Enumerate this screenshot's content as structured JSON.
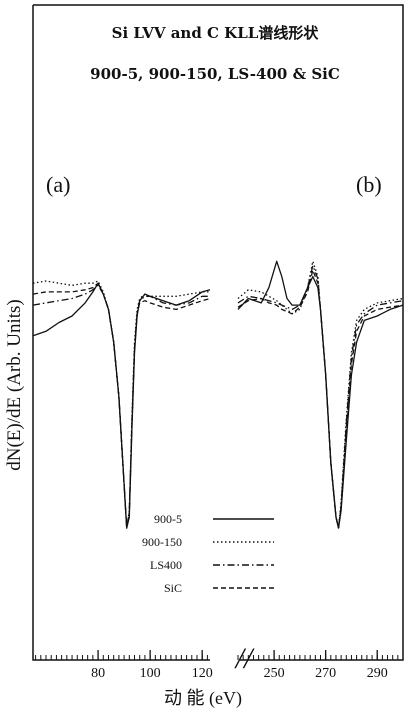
{
  "chart_data": {
    "type": "line",
    "title": "Si LVV and C KLL谱线形状",
    "subtitle": "900-5, 900-150, LS-400 & SiC",
    "xlabel": "动 能 (eV)",
    "ylabel": "dN(E)/dE (Arb. Units)",
    "axis_break": "//",
    "grid": false,
    "legend_placement": "bottom-center",
    "panels": [
      {
        "label": "(a)",
        "xlim": [
          55,
          123
        ],
        "ticks": [
          "80",
          "100",
          "120"
        ],
        "tick_values": [
          80,
          100,
          120
        ],
        "ylim": [
          -1.0,
          0.4
        ],
        "series": [
          {
            "name": "900-5",
            "style": "solid",
            "x": [
              55,
              60,
              65,
              70,
              75,
              78,
              80,
              82,
              84,
              86,
              88,
              90,
              91,
              92,
              93,
              94,
              95,
              96,
              98,
              100,
              105,
              110,
              115,
              120,
              123
            ],
            "y": [
              -0.12,
              -0.1,
              -0.06,
              -0.03,
              0.03,
              0.08,
              0.12,
              0.07,
              0.0,
              -0.15,
              -0.4,
              -0.8,
              -1.0,
              -0.95,
              -0.55,
              -0.2,
              -0.03,
              0.04,
              0.07,
              0.06,
              0.04,
              0.02,
              0.04,
              0.08,
              0.09
            ]
          },
          {
            "name": "900-150",
            "style": "dotted",
            "x": [
              55,
              60,
              65,
              70,
              75,
              78,
              80,
              82,
              84,
              86,
              88,
              90,
              91,
              92,
              93,
              94,
              95,
              96,
              98,
              100,
              105,
              110,
              115,
              120,
              123
            ],
            "y": [
              0.12,
              0.13,
              0.12,
              0.11,
              0.12,
              0.12,
              0.13,
              0.08,
              0.0,
              -0.15,
              -0.4,
              -0.8,
              -1.0,
              -0.92,
              -0.5,
              -0.15,
              0.0,
              0.05,
              0.07,
              0.06,
              0.06,
              0.06,
              0.07,
              0.08,
              0.08
            ]
          },
          {
            "name": "LS400",
            "style": "dashdot",
            "x": [
              55,
              60,
              65,
              70,
              75,
              78,
              80,
              82,
              84,
              86,
              88,
              90,
              91,
              92,
              93,
              94,
              95,
              96,
              98,
              100,
              105,
              110,
              115,
              120,
              123
            ],
            "y": [
              0.02,
              0.03,
              0.04,
              0.05,
              0.07,
              0.09,
              0.11,
              0.07,
              0.0,
              -0.15,
              -0.4,
              -0.8,
              -1.0,
              -0.93,
              -0.52,
              -0.18,
              -0.02,
              0.04,
              0.06,
              0.06,
              0.03,
              0.02,
              0.03,
              0.06,
              0.06
            ]
          },
          {
            "name": "SiC",
            "style": "dashed",
            "x": [
              55,
              60,
              65,
              70,
              75,
              78,
              80,
              82,
              84,
              86,
              88,
              90,
              91,
              92,
              93,
              94,
              95,
              96,
              98,
              100,
              105,
              110,
              115,
              120,
              123
            ],
            "y": [
              0.07,
              0.08,
              0.08,
              0.08,
              0.09,
              0.1,
              0.12,
              0.07,
              0.0,
              -0.15,
              -0.4,
              -0.8,
              -1.0,
              -0.93,
              -0.52,
              -0.18,
              -0.02,
              0.03,
              0.04,
              0.03,
              0.01,
              0.0,
              0.02,
              0.04,
              0.05
            ]
          }
        ]
      },
      {
        "label": "(b)",
        "xlim": [
          236,
          300
        ],
        "ticks": [
          "250",
          "270",
          "290"
        ],
        "tick_values": [
          250,
          270,
          290
        ],
        "ylim": [
          -1.0,
          0.4
        ],
        "series": [
          {
            "name": "900-5",
            "style": "solid",
            "x": [
              236,
              240,
              245,
              248,
              251,
              253,
              255,
              257,
              260,
              263,
              265,
              267,
              268,
              270,
              272,
              274,
              275,
              276,
              278,
              280,
              282,
              285,
              290,
              295,
              300
            ],
            "y": [
              0.0,
              0.05,
              0.03,
              0.1,
              0.22,
              0.15,
              0.05,
              0.02,
              0.02,
              0.1,
              0.15,
              0.1,
              0.0,
              -0.3,
              -0.7,
              -0.95,
              -1.0,
              -0.92,
              -0.6,
              -0.3,
              -0.15,
              -0.05,
              -0.03,
              0.0,
              0.02
            ]
          },
          {
            "name": "900-150",
            "style": "dotted",
            "x": [
              236,
              240,
              245,
              248,
              251,
              253,
              255,
              257,
              260,
              263,
              265,
              267,
              268,
              270,
              272,
              274,
              275,
              276,
              278,
              280,
              282,
              285,
              290,
              295,
              300
            ],
            "y": [
              0.05,
              0.09,
              0.08,
              0.06,
              0.04,
              0.02,
              0.0,
              -0.02,
              0.0,
              0.1,
              0.22,
              0.15,
              0.0,
              -0.3,
              -0.7,
              -0.95,
              -1.0,
              -0.88,
              -0.5,
              -0.2,
              -0.05,
              0.0,
              0.03,
              0.04,
              0.05
            ]
          },
          {
            "name": "LS400",
            "style": "dashdot",
            "x": [
              236,
              240,
              245,
              248,
              251,
              253,
              255,
              257,
              260,
              263,
              265,
              267,
              268,
              270,
              272,
              274,
              275,
              276,
              278,
              280,
              282,
              285,
              290,
              295,
              300
            ],
            "y": [
              0.03,
              0.06,
              0.05,
              0.04,
              0.03,
              0.02,
              0.01,
              0.0,
              0.02,
              0.1,
              0.2,
              0.14,
              0.0,
              -0.3,
              -0.7,
              -0.95,
              -1.0,
              -0.9,
              -0.52,
              -0.22,
              -0.07,
              -0.02,
              0.02,
              0.03,
              0.04
            ]
          },
          {
            "name": "SiC",
            "style": "dashed",
            "x": [
              236,
              240,
              245,
              248,
              251,
              253,
              255,
              257,
              260,
              263,
              265,
              267,
              268,
              270,
              272,
              274,
              275,
              276,
              278,
              280,
              282,
              285,
              290,
              295,
              300
            ],
            "y": [
              0.01,
              0.04,
              0.05,
              0.03,
              0.02,
              0.0,
              -0.01,
              -0.02,
              0.01,
              0.08,
              0.18,
              0.12,
              0.0,
              -0.3,
              -0.7,
              -0.95,
              -1.0,
              -0.9,
              -0.55,
              -0.25,
              -0.1,
              -0.03,
              0.0,
              0.01,
              0.02
            ]
          }
        ]
      }
    ]
  }
}
